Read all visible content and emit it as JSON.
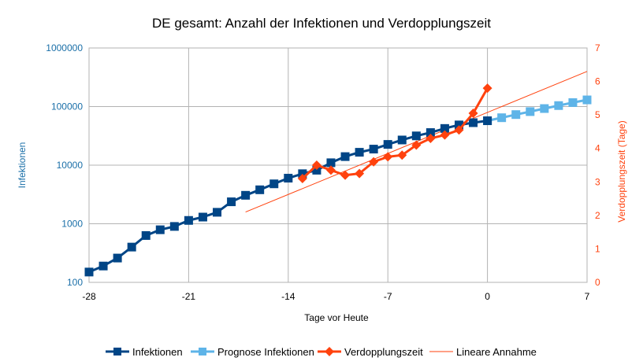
{
  "chart_data": {
    "type": "line",
    "title": "DE gesamt: Anzahl der Infektionen und Verdopplungszeit",
    "xlabel": "Tage vor Heute",
    "ylabel_left": "Infektionen",
    "ylabel_right": "Verdopplungszeit (Tage)",
    "xlim": [
      -28,
      7
    ],
    "x_ticks": [
      "-28",
      "-21",
      "-14",
      "-7",
      "0",
      "7"
    ],
    "ylim_left": [
      100,
      1000000
    ],
    "y_scale_left": "log",
    "y_ticks_left": [
      "100",
      "1000",
      "10000",
      "100000",
      "1000000"
    ],
    "ylim_right": [
      0,
      7
    ],
    "y_ticks_right": [
      "0",
      "1",
      "2",
      "3",
      "4",
      "5",
      "6",
      "7"
    ],
    "grid": true,
    "legend": "bottom",
    "colors": {
      "infektionen": "#004586",
      "prognose": "#5eb4e8",
      "verdopplung": "#ff420e",
      "linear": "#ff420e",
      "left_axis": "#1a6fa8",
      "right_axis": "#ff420e"
    },
    "series": [
      {
        "name": "Infektionen",
        "axis": "left",
        "x": [
          -28,
          -27,
          -26,
          -25,
          -24,
          -23,
          -22,
          -21,
          -20,
          -19,
          -18,
          -17,
          -16,
          -15,
          -14,
          -13,
          -12,
          -11,
          -10,
          -9,
          -8,
          -7,
          -6,
          -5,
          -4,
          -3,
          -2,
          -1,
          0
        ],
        "values": [
          150,
          190,
          260,
          400,
          630,
          790,
          900,
          1140,
          1300,
          1570,
          2370,
          3060,
          3800,
          4800,
          6000,
          7150,
          8200,
          10999,
          14000,
          16600,
          18800,
          22600,
          26900,
          31600,
          36000,
          42300,
          48600,
          53100,
          57300
        ]
      },
      {
        "name": "Prognose Infektionen",
        "axis": "left",
        "x": [
          0,
          1,
          2,
          3,
          4,
          5,
          6,
          7
        ],
        "values": [
          57300,
          64500,
          73000,
          82000,
          92500,
          104000,
          117000,
          130000
        ]
      },
      {
        "name": "Verdopplungszeit",
        "axis": "right",
        "x": [
          -13,
          -12,
          -11,
          -10,
          -9,
          -8,
          -7,
          -6,
          -5,
          -4,
          -3,
          -2,
          -1,
          0
        ],
        "values": [
          3.1,
          3.5,
          3.35,
          3.2,
          3.25,
          3.6,
          3.75,
          3.8,
          4.1,
          4.3,
          4.4,
          4.55,
          5.05,
          5.8
        ]
      },
      {
        "name": "Lineare Annahme",
        "axis": "right",
        "x": [
          -17,
          7
        ],
        "values": [
          2.1,
          6.3
        ]
      }
    ]
  }
}
